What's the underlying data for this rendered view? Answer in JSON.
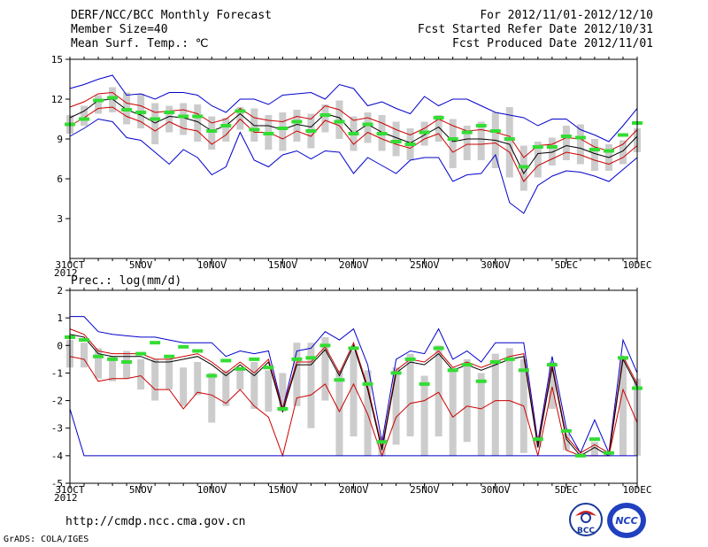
{
  "header": {
    "title": "DERF/NCC/BCC Monthly Forecast",
    "member": "Member Size=40",
    "var1": "Mean Surf. Temp.: ℃",
    "period": "For 2012/11/01-2012/12/10",
    "started": "Fcst Started Refer Date 2012/10/31",
    "produced": "Fcst Produced Date 2012/11/01"
  },
  "footer": {
    "url": "http://cmdp.ncc.cma.gov.cn",
    "grads": "GrADS: COLA/IGES"
  },
  "logos": {
    "bcc": "BCC",
    "ncc": "NCC"
  },
  "colors": {
    "max": "#0000cc",
    "min": "#0000cc",
    "q": "#cc0000",
    "mean": "#000000",
    "box": "#cccccc",
    "obs": "#33dd33"
  },
  "chart_data": [
    {
      "type": "line",
      "title": "Mean Surf. Temp.: ℃",
      "ylim": [
        0,
        15
      ],
      "yticks": [
        3,
        6,
        9,
        12,
        15
      ],
      "xticks": [
        {
          "x": 0,
          "label": "31OCT",
          "sub": "2012"
        },
        {
          "x": 5,
          "label": "5NOV"
        },
        {
          "x": 10,
          "label": "10NOV"
        },
        {
          "x": 15,
          "label": "15NOV"
        },
        {
          "x": 20,
          "label": "20NOV"
        },
        {
          "x": 25,
          "label": "25NOV"
        },
        {
          "x": 30,
          "label": "30NOV"
        },
        {
          "x": 35,
          "label": "5DEC"
        },
        {
          "x": 40,
          "label": "10DEC"
        }
      ],
      "series": [
        {
          "name": "max",
          "values": [
            12.8,
            13.1,
            13.5,
            13.8,
            12.3,
            12.4,
            12.0,
            12.5,
            12.5,
            12.3,
            11.5,
            11.0,
            12.0,
            12.0,
            11.6,
            12.3,
            12.4,
            12.5,
            12.0,
            13.1,
            12.8,
            11.5,
            11.8,
            11.3,
            10.9,
            12.2,
            11.5,
            12.0,
            12.0,
            11.5,
            11.0,
            10.8,
            10.6,
            10.0,
            10.5,
            10.5,
            9.7,
            9.3,
            8.8,
            10.0,
            11.3
          ]
        },
        {
          "name": "q90",
          "values": [
            11.4,
            11.8,
            12.4,
            12.5,
            11.7,
            11.5,
            11.0,
            11.1,
            11.2,
            10.9,
            10.2,
            10.5,
            11.3,
            10.6,
            10.4,
            10.3,
            10.7,
            10.5,
            11.5,
            11.2,
            10.4,
            10.6,
            10.2,
            9.7,
            9.3,
            9.8,
            10.5,
            10.0,
            9.6,
            9.7,
            9.5,
            9.2,
            7.6,
            8.5,
            8.6,
            9.1,
            9.0,
            8.4,
            8.1,
            8.6,
            9.7
          ]
        },
        {
          "name": "mean",
          "values": [
            10.6,
            11.1,
            11.9,
            12.0,
            11.2,
            10.8,
            10.2,
            10.7,
            10.6,
            10.3,
            9.6,
            10.0,
            10.9,
            10.0,
            10.0,
            9.7,
            10.1,
            9.9,
            10.9,
            10.6,
            9.4,
            10.1,
            9.5,
            9.1,
            8.7,
            9.3,
            9.9,
            8.8,
            9.0,
            9.0,
            8.9,
            8.6,
            6.4,
            7.9,
            8.0,
            8.5,
            8.3,
            7.9,
            7.6,
            8.1,
            9.2
          ]
        },
        {
          "name": "q10",
          "values": [
            10.0,
            10.6,
            11.3,
            11.4,
            10.7,
            10.3,
            9.6,
            10.3,
            9.8,
            9.6,
            8.6,
            9.3,
            10.5,
            9.5,
            9.5,
            9.0,
            9.6,
            9.2,
            10.4,
            10.0,
            8.6,
            9.5,
            9.0,
            8.6,
            8.3,
            9.0,
            9.4,
            8.0,
            8.6,
            8.6,
            8.7,
            8.0,
            5.8,
            7.0,
            7.5,
            8.0,
            7.8,
            7.4,
            7.1,
            7.6,
            8.5
          ]
        },
        {
          "name": "min",
          "values": [
            9.2,
            9.8,
            10.5,
            10.3,
            9.1,
            8.9,
            8.0,
            7.1,
            8.2,
            7.6,
            6.3,
            6.9,
            9.5,
            7.4,
            6.9,
            7.8,
            8.1,
            7.5,
            8.1,
            8.0,
            6.4,
            7.6,
            7.0,
            6.4,
            7.4,
            7.6,
            7.6,
            5.8,
            6.3,
            6.4,
            7.8,
            4.2,
            3.4,
            5.5,
            6.2,
            6.6,
            6.5,
            6.2,
            5.8,
            6.7,
            7.6
          ]
        }
      ],
      "box_top": [
        10.8,
        11.5,
        12.3,
        12.9,
        12.5,
        12.4,
        11.7,
        11.5,
        11.7,
        11.6,
        10.7,
        10.6,
        11.4,
        11.3,
        10.8,
        11.0,
        11.2,
        10.9,
        11.6,
        11.9,
        10.7,
        11.0,
        10.8,
        10.3,
        9.8,
        10.3,
        10.8,
        10.5,
        10.0,
        10.3,
        11.0,
        11.4,
        8.5,
        8.8,
        9.1,
        10.0,
        10.1,
        9.0,
        8.6,
        8.9,
        9.8
      ],
      "box_bottom": [
        9.4,
        10.0,
        10.9,
        11.0,
        10.1,
        9.8,
        8.6,
        9.5,
        9.3,
        8.8,
        8.2,
        8.8,
        9.7,
        8.8,
        8.2,
        8.1,
        8.8,
        8.3,
        9.5,
        9.0,
        8.1,
        8.7,
        8.1,
        7.7,
        7.4,
        8.5,
        8.8,
        6.8,
        7.4,
        7.4,
        6.8,
        6.1,
        5.1,
        6.1,
        7.0,
        7.4,
        7.1,
        6.6,
        6.6,
        7.1,
        8.0
      ],
      "obs": [
        10.1,
        10.5,
        11.9,
        12.1,
        11.2,
        11.0,
        10.5,
        11.0,
        10.7,
        10.7,
        9.6,
        10.0,
        11.1,
        9.7,
        9.4,
        9.8,
        10.3,
        9.6,
        10.8,
        10.3,
        9.4,
        10.1,
        9.4,
        8.8,
        8.6,
        9.5,
        10.6,
        9.0,
        9.5,
        10.0,
        9.6,
        9.0,
        6.9,
        8.4,
        8.4,
        9.2,
        9.1,
        8.2,
        8.1,
        9.3,
        10.2
      ]
    },
    {
      "type": "line",
      "title": "Prec.: log(mm/d)",
      "ylim": [
        -5,
        2
      ],
      "yticks": [
        -5,
        -4,
        -3,
        -2,
        -1,
        0,
        1,
        2
      ],
      "xticks": [
        {
          "x": 0,
          "label": "31OCT",
          "sub": "2012"
        },
        {
          "x": 5,
          "label": "5NOV"
        },
        {
          "x": 10,
          "label": "10NOV"
        },
        {
          "x": 15,
          "label": "15NOV"
        },
        {
          "x": 20,
          "label": "20NOV"
        },
        {
          "x": 25,
          "label": "25NOV"
        },
        {
          "x": 30,
          "label": "30NOV"
        },
        {
          "x": 35,
          "label": "5DEC"
        },
        {
          "x": 40,
          "label": "10DEC"
        }
      ],
      "series": [
        {
          "name": "max",
          "values": [
            1.05,
            1.05,
            0.5,
            0.4,
            0.35,
            0.3,
            0.3,
            0.2,
            0.1,
            0.1,
            0.1,
            -0.4,
            -0.2,
            -0.3,
            -0.2,
            -2.3,
            -0.2,
            -0.1,
            0.5,
            0.2,
            0.6,
            -0.7,
            -3.5,
            -0.5,
            -0.2,
            -0.3,
            0.6,
            -0.5,
            -0.2,
            -0.6,
            0.1,
            0.1,
            0.1,
            -3.5,
            -0.4,
            -3.0,
            -3.9,
            -2.7,
            -3.9,
            0.2,
            -1.0
          ]
        },
        {
          "name": "q90",
          "values": [
            0.6,
            0.4,
            -0.2,
            -0.3,
            -0.3,
            -0.3,
            -0.5,
            -0.5,
            -0.4,
            -0.3,
            -0.6,
            -1.0,
            -0.6,
            -1.0,
            -0.5,
            -2.3,
            -0.6,
            -0.6,
            -0.05,
            -1.0,
            0.1,
            -1.5,
            -3.7,
            -0.9,
            -0.5,
            -0.6,
            -0.2,
            -0.8,
            -0.6,
            -0.8,
            -0.6,
            -0.4,
            -0.3,
            -3.6,
            -0.7,
            -3.3,
            -3.9,
            -3.6,
            -3.9,
            -0.4,
            -1.4
          ]
        },
        {
          "name": "mean",
          "values": [
            0.4,
            0.3,
            -0.3,
            -0.4,
            -0.4,
            -0.4,
            -0.6,
            -0.6,
            -0.5,
            -0.4,
            -0.7,
            -1.1,
            -0.7,
            -1.1,
            -0.6,
            -2.4,
            -0.7,
            -0.7,
            -0.15,
            -1.1,
            0.0,
            -1.6,
            -3.8,
            -1.0,
            -0.6,
            -0.7,
            -0.3,
            -0.9,
            -0.7,
            -0.9,
            -0.7,
            -0.5,
            -0.4,
            -3.7,
            -0.8,
            -3.4,
            -4.0,
            -3.7,
            -4.0,
            -0.5,
            -1.5
          ]
        },
        {
          "name": "q10",
          "values": [
            -0.4,
            -0.5,
            -1.3,
            -1.2,
            -1.2,
            -1.1,
            -1.6,
            -1.6,
            -2.3,
            -1.7,
            -1.8,
            -2.1,
            -1.6,
            -2.2,
            -2.6,
            -4.0,
            -1.9,
            -1.8,
            -1.4,
            -2.4,
            -1.4,
            -2.5,
            -4.0,
            -2.6,
            -2.1,
            -2.0,
            -1.7,
            -2.6,
            -2.2,
            -2.3,
            -2.0,
            -2.0,
            -2.2,
            -4.0,
            -1.5,
            -3.8,
            -4.0,
            -4.0,
            -4.0,
            -1.6,
            -2.8
          ]
        },
        {
          "name": "min",
          "values": [
            -2.3,
            -4.0,
            -4.0,
            -4.0,
            -4.0,
            -4.0,
            -4.0,
            -4.0,
            -4.0,
            -4.0,
            -4.0,
            -4.0,
            -4.0,
            -4.0,
            -4.0,
            -4.0,
            -4.0,
            -4.0,
            -4.0,
            -4.0,
            -4.0,
            -4.0,
            -4.0,
            -4.0,
            -4.0,
            -4.0,
            -4.0,
            -4.0,
            -4.0,
            -4.0,
            -4.0,
            -4.0,
            -4.0,
            -4.0,
            -4.0,
            -4.0,
            -4.0,
            -4.0,
            -4.0,
            -4.0,
            -4.0
          ]
        },
        {
          "name": "q90b",
          "values": [
            0.45,
            0.35,
            -0.25,
            -0.35,
            -0.35,
            -0.35,
            -0.55,
            -0.55,
            -0.45,
            -0.35,
            -0.65,
            -1.05,
            -0.65,
            -1.05,
            -0.55,
            -2.35,
            -0.65,
            -0.65,
            -0.1,
            -1.05,
            0.05,
            -1.55,
            -3.75,
            -0.95,
            -0.55,
            -0.65,
            -0.25,
            -0.85,
            -0.65,
            -0.85,
            -0.65,
            -0.45,
            -0.35,
            -3.65,
            -0.75,
            -3.35,
            -3.95,
            -3.65,
            -3.95,
            -0.45,
            -1.45
          ]
        }
      ],
      "box_top": [
        0.2,
        0.1,
        -0.1,
        -0.4,
        -0.2,
        -0.5,
        -0.5,
        -0.5,
        -0.8,
        -0.6,
        -1.0,
        -0.9,
        -0.9,
        -0.6,
        -0.9,
        -1.0,
        0.1,
        0.1,
        0.3,
        -0.9,
        -0.2,
        -0.9,
        -3.3,
        -0.8,
        -0.3,
        -1.1,
        0.0,
        -0.8,
        -0.5,
        -1.0,
        -0.3,
        -0.1,
        -0.5,
        -3.3,
        -0.6,
        -3.2,
        -3.9,
        -3.5,
        -3.9,
        -0.5,
        -1.2
      ],
      "box_bottom": [
        -0.8,
        -0.8,
        -1.2,
        -1.3,
        -1.2,
        -1.6,
        -2.0,
        -1.6,
        -2.2,
        -1.8,
        -2.8,
        -2.2,
        -1.6,
        -2.3,
        -2.4,
        -2.4,
        -2.2,
        -3.0,
        -2.0,
        -4.0,
        -3.3,
        -4.0,
        -4.0,
        -3.6,
        -3.3,
        -4.0,
        -3.3,
        -4.0,
        -3.5,
        -4.0,
        -4.0,
        -4.0,
        -3.9,
        -3.7,
        -2.3,
        -3.8,
        -4.0,
        -4.0,
        -4.0,
        -4.0,
        -4.0
      ],
      "obs": [
        0.3,
        0.2,
        -0.4,
        -0.5,
        -0.6,
        -0.3,
        0.1,
        -0.4,
        -0.05,
        -0.2,
        -1.1,
        -0.55,
        -0.85,
        -0.5,
        -0.8,
        -2.3,
        -0.5,
        -0.45,
        0.0,
        -1.25,
        -0.1,
        -1.4,
        -3.5,
        -1.0,
        -0.5,
        -1.4,
        -0.1,
        -0.9,
        -0.7,
        -1.3,
        -0.6,
        -0.5,
        -0.9,
        -3.4,
        -0.7,
        -3.1,
        -4.0,
        -3.4,
        -3.9,
        -0.45,
        -1.55
      ]
    }
  ]
}
